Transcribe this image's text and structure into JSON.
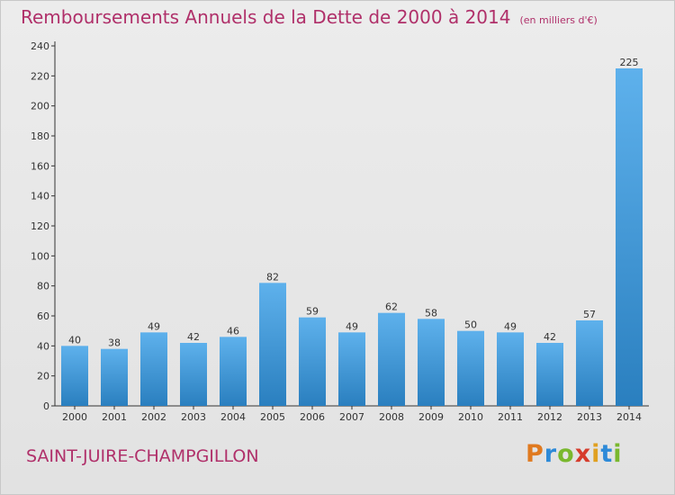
{
  "header": {
    "title": "Remboursements Annuels de la Dette de 2000 à 2014",
    "unit": "(en milliers d'€)"
  },
  "footer": {
    "city": "SAINT-JUIRE-CHAMPGILLON",
    "logo": "Proxiti"
  },
  "colors": {
    "title": "#b0306a",
    "bar_top": "#5eb1ec",
    "bar_bottom": "#2a7fbf"
  },
  "chart_data": {
    "type": "bar",
    "title": "Remboursements Annuels de la Dette de 2000 à 2014",
    "xlabel": "",
    "ylabel": "",
    "ylim": [
      0,
      240
    ],
    "yticks": [
      0,
      20,
      40,
      60,
      80,
      100,
      120,
      140,
      160,
      180,
      200,
      220,
      240
    ],
    "grid": false,
    "categories": [
      "2000",
      "2001",
      "2002",
      "2003",
      "2004",
      "2005",
      "2006",
      "2007",
      "2008",
      "2009",
      "2010",
      "2011",
      "2012",
      "2013",
      "2014"
    ],
    "values": [
      40,
      38,
      49,
      42,
      46,
      82,
      59,
      49,
      62,
      58,
      50,
      49,
      42,
      57,
      225
    ]
  }
}
